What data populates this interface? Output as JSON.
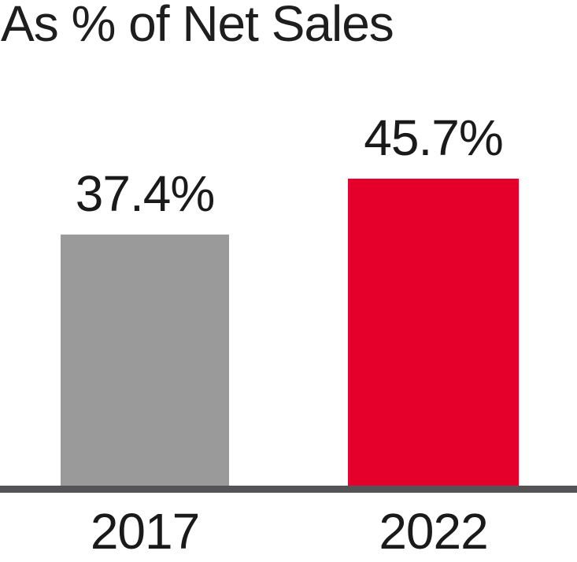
{
  "chart_data": {
    "type": "bar",
    "title": "As % of Net Sales",
    "categories": [
      "2017",
      "2022"
    ],
    "values": [
      37.4,
      45.7
    ],
    "value_labels": [
      "37.4%",
      "45.7%"
    ],
    "bar_colors": [
      "#9a9a9a",
      "#e4002b"
    ],
    "xlabel": "",
    "ylabel": "",
    "ylim": [
      0,
      50
    ],
    "grid": false,
    "legend": "none",
    "y_axis_visible": false,
    "x_axis_line_color": "#545456",
    "text_color": "#1a1a1a",
    "background_color": "#ffffff"
  }
}
